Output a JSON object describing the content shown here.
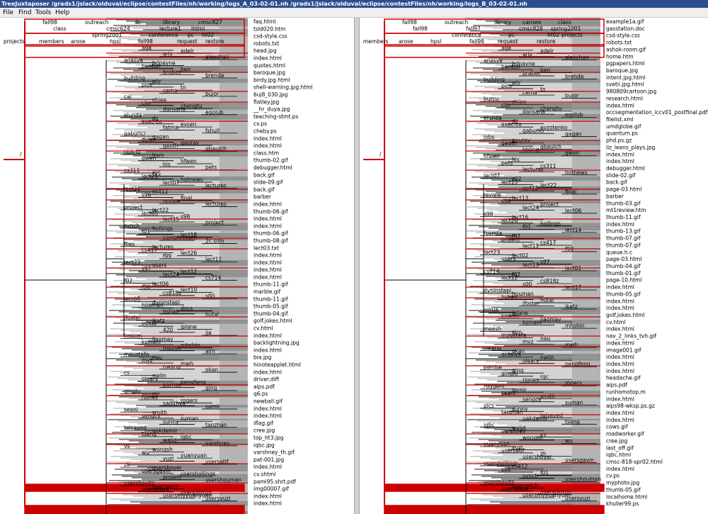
{
  "window": {
    "title": "TreeJuxtaposer /grads1/jslack/olduvai/eclipse/contestFiles/nh/working/logs_A_03-02-01.nh /grads1/jslack/olduvai/eclipse/contestFiles/nh/working/logs_B_03-02-01.nh"
  },
  "menu": [
    "File",
    "Find",
    "Tools",
    "Help"
  ],
  "colors": {
    "highlight": "#cc0000",
    "edge": "#000000",
    "band_dark": "#6e6e6e",
    "band_light": "#c8c8c8"
  },
  "left_tree": {
    "root_label": "/",
    "top_labels": [
      {
        "text": "fall98"
      },
      {
        "text": "outreach"
      },
      {
        "text": "dc"
      },
      {
        "text": "library"
      },
      {
        "text": "cmsc827"
      },
      {
        "text": "class"
      },
      {
        "text": "cmsc624"
      },
      {
        "text": "lecture1"
      },
      {
        "text": "lhtml"
      },
      {
        "text": "spring2001"
      },
      {
        "text": "conference"
      },
      {
        "text": "pc"
      },
      {
        "text": "ht02"
      },
      {
        "text": "projects"
      },
      {
        "text": "members"
      },
      {
        "text": "arose"
      },
      {
        "text": "hpsl"
      },
      {
        "text": "fall98"
      },
      {
        "text": "request"
      },
      {
        "text": "restore"
      }
    ],
    "inner_labels": [
      {
        "text": "aga"
      },
      {
        "text": "adelr"
      },
      {
        "text": "aris"
      },
      {
        "text": "alexchan"
      },
      {
        "text": "anasya"
      },
      {
        "text": "bdpayne"
      },
      {
        "text": "benton"
      },
      {
        "text": "ben"
      },
      {
        "text": "brabec"
      },
      {
        "text": "brenda"
      },
      {
        "text": "building"
      },
      {
        "text": "pitr"
      },
      {
        "text": "pics"
      },
      {
        "text": "tn"
      },
      {
        "text": "cema"
      },
      {
        "text": "bujor"
      },
      {
        "text": "cal"
      },
      {
        "text": "chlee"
      },
      {
        "text": "clin"
      },
      {
        "text": "chengtu"
      },
      {
        "text": "dansana"
      },
      {
        "text": "egolub"
      },
      {
        "text": "elunda"
      },
      {
        "text": "dz"
      },
      {
        "text": "exec-co"
      },
      {
        "text": "evsen"
      },
      {
        "text": "fatma"
      },
      {
        "text": "fshull"
      },
      {
        "text": "gaburici"
      },
      {
        "text": "gagan"
      },
      {
        "text": "dylan"
      },
      {
        "text": "gaurav"
      },
      {
        "text": "geoffr"
      },
      {
        "text": "gbaulch"
      },
      {
        "text": "hbling"
      },
      {
        "text": "ham"
      },
      {
        "text": "gwen"
      },
      {
        "text": "hfwen"
      },
      {
        "text": "his"
      },
      {
        "text": "pets"
      },
      {
        "text": "cs311"
      },
      {
        "text": "f95"
      },
      {
        "text": "lect21"
      },
      {
        "text": "hotnews"
      },
      {
        "text": "lect07"
      },
      {
        "text": "lectures"
      },
      {
        "text": "lect21"
      },
      {
        "text": "cs412"
      },
      {
        "text": "s96"
      },
      {
        "text": "final"
      },
      {
        "text": "review"
      },
      {
        "text": "lectures"
      },
      {
        "text": "project"
      },
      {
        "text": "lect22"
      },
      {
        "text": "lect05"
      },
      {
        "text": "s98"
      },
      {
        "text": "lect15"
      },
      {
        "text": "project"
      },
      {
        "text": "synch"
      },
      {
        "text": "hollings"
      },
      {
        "text": "f01"
      },
      {
        "text": "lect18"
      },
      {
        "text": "sampleexam"
      },
      {
        "text": "2c.soln"
      },
      {
        "text": "files"
      },
      {
        "text": "lectures"
      },
      {
        "text": "cs417"
      },
      {
        "text": "lect26"
      },
      {
        "text": "f99"
      },
      {
        "text": "lect11"
      },
      {
        "text": "lect23"
      },
      {
        "text": "users"
      },
      {
        "text": "s97"
      },
      {
        "text": "lect12"
      },
      {
        "text": "lect24"
      },
      {
        "text": "cs714"
      },
      {
        "text": "f02"
      },
      {
        "text": "lect06"
      },
      {
        "text": "f96"
      },
      {
        "text": "lect10"
      },
      {
        "text": "cs818z"
      },
      {
        "text": "s00"
      },
      {
        "text": "lect05"
      },
      {
        "text": "dyninstapi"
      },
      {
        "text": "houman"
      },
      {
        "text": "docs"
      },
      {
        "text": "hshan"
      },
      {
        "text": "hutai"
      },
      {
        "text": "jfoster"
      },
      {
        "text": "ikatz"
      },
      {
        "text": "inhua"
      },
      {
        "text": "jplane"
      },
      {
        "text": "420"
      },
      {
        "text": "jja"
      },
      {
        "text": "kmkim"
      },
      {
        "text": "liaomay"
      },
      {
        "text": "ksmani"
      },
      {
        "text": "mhshin"
      },
      {
        "text": "meesh"
      },
      {
        "text": "aim"
      },
      {
        "text": "moustafa"
      },
      {
        "text": "nau"
      },
      {
        "text": "mvz"
      },
      {
        "text": "mwh"
      },
      {
        "text": "nwang"
      },
      {
        "text": "okan"
      },
      {
        "text": "cs"
      },
      {
        "text": "nwlin"
      },
      {
        "text": "oleary"
      },
      {
        "text": "pengfeng"
      },
      {
        "text": "parrise"
      },
      {
        "text": "qing"
      },
      {
        "text": "qinglu"
      },
      {
        "text": "rgc"
      },
      {
        "text": "rjones"
      },
      {
        "text": "rogers"
      },
      {
        "text": "sadithya"
      },
      {
        "text": "samir"
      },
      {
        "text": "seanl"
      },
      {
        "text": "smith"
      },
      {
        "text": "sengcy"
      },
      {
        "text": "suman"
      },
      {
        "text": "sunny"
      },
      {
        "text": "taozhan"
      },
      {
        "text": "telsayed"
      },
      {
        "text": "uakdemir"
      },
      {
        "text": "tseng"
      },
      {
        "text": "iqbc"
      },
      {
        "text": "walid"
      },
      {
        "text": "varshney"
      },
      {
        "text": "vs"
      },
      {
        "text": "wongsh"
      },
      {
        "text": "wu"
      },
      {
        "text": "yuanyuan"
      },
      {
        "text": "yuzi"
      },
      {
        "text": "usersatif"
      },
      {
        "text": "zli"
      },
      {
        "text": "usershoyer"
      },
      {
        "text": "usersgavin"
      },
      {
        "text": "usershollings"
      },
      {
        "text": "project"
      },
      {
        "text": "usershouman"
      },
      {
        "text": "usershovitz"
      },
      {
        "text": "userswich"
      },
      {
        "text": "userskape"
      },
      {
        "text": "usersolorpo"
      },
      {
        "text": "usersmyyuanyuan"
      },
      {
        "text": "usersyuzi"
      }
    ],
    "leaves": [
      "faq.html",
      "tsld020.htm",
      "csd-style.css",
      "robots.txt",
      "head.jpg",
      "index.html",
      "quotes.html",
      "baroque.jpg",
      "birdy.jpg.html",
      "shell-warning.jpg.html",
      "6uj8_030.jpg",
      "flatley.jpg",
      "__hr_duya.jpg",
      "teaching-stmt.ps",
      "cv.ps",
      "cheby.ps",
      "index.html",
      "index.html",
      "class.htm",
      "thumb-02.gif",
      "debugger.html",
      "back.gif",
      "slide-09.gif",
      "back.gif",
      "barber",
      "index.html",
      "thumb-06.gif",
      "index.html",
      "index.html",
      "thumb-06.gif",
      "thumb-08.gif",
      "lect03.txt",
      "index.html",
      "index.html",
      "index.html",
      "index.html",
      "thumb-11.gif",
      "marble.gif",
      "thumb-11.gif",
      "thumb-05.gif",
      "thumb-04.gif",
      "golf.jokes.html",
      "cv.html",
      "index.html",
      "backlightning.jpg",
      "index.html",
      "bia.jpg",
      "hinoteapplet.html",
      "index.html",
      "driver.diff",
      "aips.pdf",
      "q6.ps",
      "newball.gif",
      "index.html",
      "index.html",
      "iflag.gif",
      "cree.jpg",
      "top_ht3.jpg",
      "iqbc.jpg",
      "varshney_th.gif",
      "pat-001.jpg",
      "index.html",
      "cv.shtml",
      "pami95.shrt.pdf",
      "img00007.gif",
      "index.html",
      "index.html"
    ]
  },
  "right_tree": {
    "root_label": "/",
    "top_labels": [
      {
        "text": "fall98"
      },
      {
        "text": "outreach"
      },
      {
        "text": "library"
      },
      {
        "text": "cansee"
      },
      {
        "text": "class"
      },
      {
        "text": "fall98"
      },
      {
        "text": "fall97"
      },
      {
        "text": "cmsc828"
      },
      {
        "text": "spring2001"
      },
      {
        "text": "conference"
      },
      {
        "text": "pc"
      },
      {
        "text": "ht02"
      },
      {
        "text": "projects"
      },
      {
        "text": "members"
      },
      {
        "text": "arose"
      },
      {
        "text": "hpsl"
      },
      {
        "text": "fall98"
      },
      {
        "text": "request"
      },
      {
        "text": "restore"
      }
    ],
    "inner_labels": [
      {
        "text": "aga"
      },
      {
        "text": "adelr"
      },
      {
        "text": "aris"
      },
      {
        "text": "alexchan"
      },
      {
        "text": "anasya"
      },
      {
        "text": "bdpayne"
      },
      {
        "text": "benton"
      },
      {
        "text": "ben"
      },
      {
        "text": "brabec"
      },
      {
        "text": "brenda"
      },
      {
        "text": "building"
      },
      {
        "text": "pitr"
      },
      {
        "text": "pics"
      },
      {
        "text": "tn"
      },
      {
        "text": "cema"
      },
      {
        "text": "bujor"
      },
      {
        "text": "burcu"
      },
      {
        "text": "chlee"
      },
      {
        "text": "clin"
      },
      {
        "text": "chengtu"
      },
      {
        "text": "dansana"
      },
      {
        "text": "egolub"
      },
      {
        "text": "elunda"
      },
      {
        "text": "dz"
      },
      {
        "text": "exec-co"
      },
      {
        "text": "evzotenko"
      },
      {
        "text": "gaburici"
      },
      {
        "text": "gagan"
      },
      {
        "text": "jobs"
      },
      {
        "text": "gaurav"
      },
      {
        "text": "geoffr"
      },
      {
        "text": "gbaulch"
      },
      {
        "text": "hbling"
      },
      {
        "text": "gwen"
      },
      {
        "text": "hfwen"
      },
      {
        "text": "his"
      },
      {
        "text": "pets"
      },
      {
        "text": "cs311"
      },
      {
        "text": "lectures"
      },
      {
        "text": "hotnews"
      },
      {
        "text": "lect07"
      },
      {
        "text": "s02"
      },
      {
        "text": "lect15"
      },
      {
        "text": "lect22"
      },
      {
        "text": "cs412"
      },
      {
        "text": "final"
      },
      {
        "text": "review"
      },
      {
        "text": "lect13"
      },
      {
        "text": "s96"
      },
      {
        "text": "project"
      },
      {
        "text": "lect24"
      },
      {
        "text": "lect06"
      },
      {
        "text": "s98"
      },
      {
        "text": "lect16"
      },
      {
        "text": "lect26"
      },
      {
        "text": "hollings"
      },
      {
        "text": "f01"
      },
      {
        "text": "lect14"
      },
      {
        "text": "fcomta"
      },
      {
        "text": "f97"
      },
      {
        "text": "project"
      },
      {
        "text": "cs417"
      },
      {
        "text": "lect11"
      },
      {
        "text": "f99"
      },
      {
        "text": "lect23"
      },
      {
        "text": "lect02"
      },
      {
        "text": "users"
      },
      {
        "text": "s97"
      },
      {
        "text": "lect13"
      },
      {
        "text": "lect01"
      },
      {
        "text": "cs714"
      },
      {
        "text": "f02"
      },
      {
        "text": "lect12"
      },
      {
        "text": "cs818z"
      },
      {
        "text": "s00"
      },
      {
        "text": "lect17"
      },
      {
        "text": "dyninstapi"
      },
      {
        "text": "houman"
      },
      {
        "text": "hshan"
      },
      {
        "text": "hutai"
      },
      {
        "text": "jfoster"
      },
      {
        "text": "ikatz"
      },
      {
        "text": "inhua"
      },
      {
        "text": "jplane"
      },
      {
        "text": "kmkim"
      },
      {
        "text": "liaomay"
      },
      {
        "text": "ksmani"
      },
      {
        "text": "mhshin"
      },
      {
        "text": "meesh"
      },
      {
        "text": "aim"
      },
      {
        "text": "moustafa"
      },
      {
        "text": "nau"
      },
      {
        "text": "mvz"
      },
      {
        "text": "mwh"
      },
      {
        "text": "nwang"
      },
      {
        "text": "okan"
      },
      {
        "text": "antalya"
      },
      {
        "text": "nwlin"
      },
      {
        "text": "oleary"
      },
      {
        "text": "pengfeng"
      },
      {
        "text": "parrise"
      },
      {
        "text": "qing"
      },
      {
        "text": "qinglu"
      },
      {
        "text": "rgc"
      },
      {
        "text": "rjones"
      },
      {
        "text": "rogers"
      },
      {
        "text": "ruggero"
      },
      {
        "text": "samir"
      },
      {
        "text": "seanl"
      },
      {
        "text": "smith"
      },
      {
        "text": "sengcy"
      },
      {
        "text": "suman"
      },
      {
        "text": "pics"
      },
      {
        "text": "sunny"
      },
      {
        "text": "taozhan"
      },
      {
        "text": "telsayed"
      },
      {
        "text": "uakdemir"
      },
      {
        "text": "tseng"
      },
      {
        "text": "iqbc"
      },
      {
        "text": "walid"
      },
      {
        "text": "varshney"
      },
      {
        "text": "vs"
      },
      {
        "text": "wongsh"
      },
      {
        "text": "wu"
      },
      {
        "text": "yuanyuan"
      },
      {
        "text": "yuzi"
      },
      {
        "text": "usersatif"
      },
      {
        "text": "zli"
      },
      {
        "text": "usershoyer"
      },
      {
        "text": "usersgavin"
      },
      {
        "text": "usershollings"
      },
      {
        "text": "cs412"
      },
      {
        "text": "s98"
      },
      {
        "text": "f01"
      },
      {
        "text": "synch"
      },
      {
        "text": "usershouman"
      },
      {
        "text": "usershovitz"
      },
      {
        "text": "userswich"
      },
      {
        "text": "userskape"
      },
      {
        "text": "usersolorpo"
      },
      {
        "text": "usersmyyuanyuan"
      },
      {
        "text": "usersyuzi"
      }
    ],
    "leaves": [
      "example1a.gif",
      "gasstation.doc",
      "csd-style.css",
      "robots.txt",
      "ashok-room.gif",
      "home.htm",
      "pgpapers.html",
      "baroque.jpg",
      "intent.jpg.html",
      "svetii.jpg.html",
      "980809cartoon.jpg",
      "research.html",
      "index.html",
      "occsegmentation_iccv01_postfinal.pdf",
      "filelist.xml",
      "umdglobe.gif",
      "quantum.ps",
      "phd.ps.gz",
      "liz_leans_plays.jpg",
      "index.html",
      "index.html",
      "debugger.html",
      "slide-02.gif",
      "back.gif",
      "page-03.html",
      "barber",
      "thumb-03.gif",
      "mt1review.htm",
      "thumb-11.gif",
      "index.html",
      "thumb-13.gif",
      "thumb-07.gif",
      "thumb-07.gif",
      "queue.h.c",
      "page-03.html",
      "thumb-04.gif",
      "thumb-01.gif",
      "page-10.html",
      "index.html",
      "thumb-05.gif",
      "index.html",
      "index.html",
      "golf.jokes.html",
      "cv.html",
      "index.html",
      "nav_2_links_tvh.gif",
      "index.html",
      "image001.gif",
      "index.html",
      "index.html",
      "index.html",
      "headache.gif",
      "aips.pdf",
      "runhomotop.m",
      "index.html",
      "aips98-wksp.ps.gz",
      "index.html",
      "index.html",
      "cows.gif",
      "roadworker.gif",
      "cree.jpg",
      "last_off.gif",
      "iqbc.html",
      "cmsc-818-spr02.html",
      "index.html",
      "cv.ps",
      "myphoto.jpg",
      "thumb-05.gif",
      "localhome.html",
      "khuller99.ps"
    ]
  }
}
